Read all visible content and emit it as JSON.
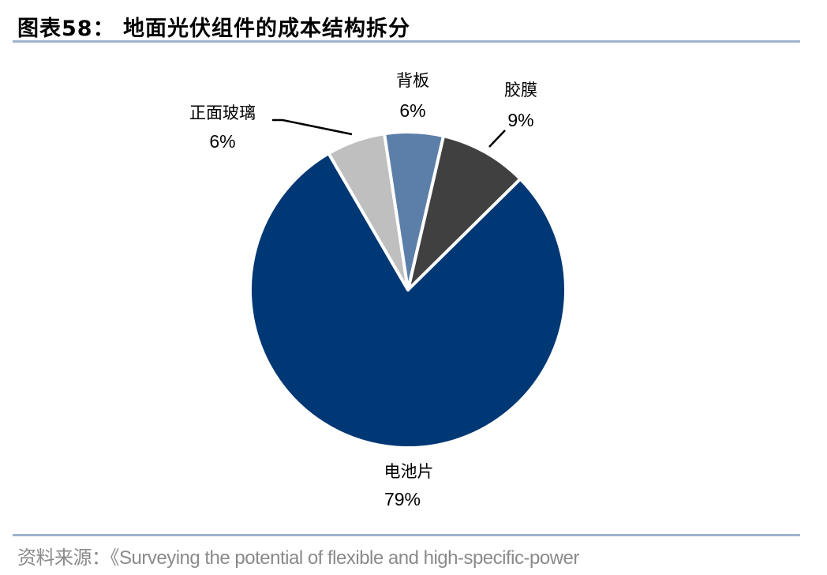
{
  "title": "图表58：  地面光伏组件的成本结构拆分",
  "source": "资料来源：《Surveying the potential of flexible and high-specific-power",
  "chart_data": {
    "type": "pie",
    "title": "地面光伏组件的成本结构拆分",
    "slices": [
      {
        "label": "胶膜",
        "value": 9,
        "value_label": "9%",
        "color": "#404040"
      },
      {
        "label": "电池片",
        "value": 79,
        "value_label": "79%",
        "color": "#003775"
      },
      {
        "label": "正面玻璃",
        "value": 6,
        "value_label": "6%",
        "color": "#bfbfbf"
      },
      {
        "label": "背板",
        "value": 6,
        "value_label": "6%",
        "color": "#5b7fa8"
      }
    ],
    "legend": "none"
  }
}
